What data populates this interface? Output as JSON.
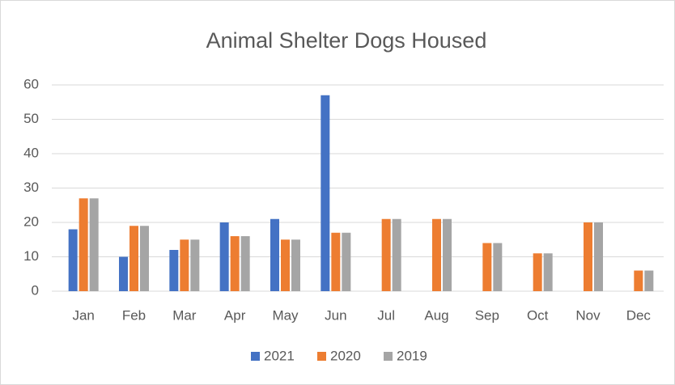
{
  "chart_data": {
    "type": "bar",
    "title": "Animal Shelter Dogs Housed",
    "categories": [
      "Jan",
      "Feb",
      "Mar",
      "Apr",
      "May",
      "Jun",
      "Jul",
      "Aug",
      "Sep",
      "Oct",
      "Nov",
      "Dec"
    ],
    "series": [
      {
        "name": "2021",
        "color": "#4472c4",
        "values": [
          18,
          10,
          12,
          20,
          21,
          57,
          null,
          null,
          null,
          null,
          null,
          null
        ]
      },
      {
        "name": "2020",
        "color": "#ed7d31",
        "values": [
          27,
          19,
          15,
          16,
          15,
          17,
          21,
          21,
          14,
          11,
          20,
          6
        ]
      },
      {
        "name": "2019",
        "color": "#a5a5a5",
        "values": [
          27,
          19,
          15,
          16,
          15,
          17,
          21,
          21,
          14,
          11,
          20,
          6
        ]
      }
    ],
    "ylim": [
      0,
      60
    ],
    "yticks": [
      0,
      10,
      20,
      30,
      40,
      50,
      60
    ],
    "grid": true,
    "legend": "bottom"
  }
}
